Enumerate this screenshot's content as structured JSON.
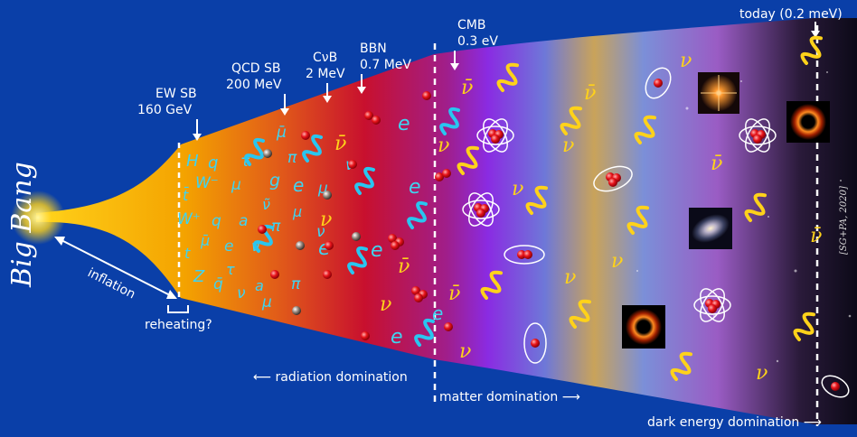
{
  "title_text": "Big Bang",
  "labels": {
    "inflation": "inflation",
    "reheating": "reheating?",
    "ew_sb_name": "EW SB",
    "ew_sb_energy": "160 GeV",
    "qcd_sb_name": "QCD SB",
    "qcd_sb_energy": "200 MeV",
    "cnub_name": "CνB",
    "cnub_energy": "2 MeV",
    "bbn_name": "BBN",
    "bbn_energy": "0.7 MeV",
    "cmb_name": "CMB",
    "cmb_energy": "0.3 eV",
    "today": "today (0.2 meV)",
    "radiation_domination": "⟵ radiation domination",
    "matter_domination": "matter domination ⟶",
    "dark_energy_domination": "dark energy domination ⟶",
    "credit": "[SG+PA, 2020]"
  },
  "particle_symbols": {
    "H": "H",
    "q": "q",
    "tau": "τ",
    "mu_bar": "μ̄",
    "W_minus": "W⁻",
    "mu": "μ",
    "g": "g",
    "e": "e",
    "pi": "π",
    "t_bar": "t̄",
    "nu": "ν",
    "nu_bar": "ν̄",
    "nu_tilde": "ν̃",
    "W_plus": "W⁺",
    "a": "a",
    "t": "t",
    "Z": "Z",
    "q_bar": "q̄"
  },
  "colors": {
    "background": "#0a3fa8",
    "cone_early": "#f4a300",
    "cone_radiation": "#c8102e",
    "cone_purple": "#8a2be2",
    "photon_cyan": "#29c6f0",
    "neutrino_yellow": "#ffd21a"
  }
}
